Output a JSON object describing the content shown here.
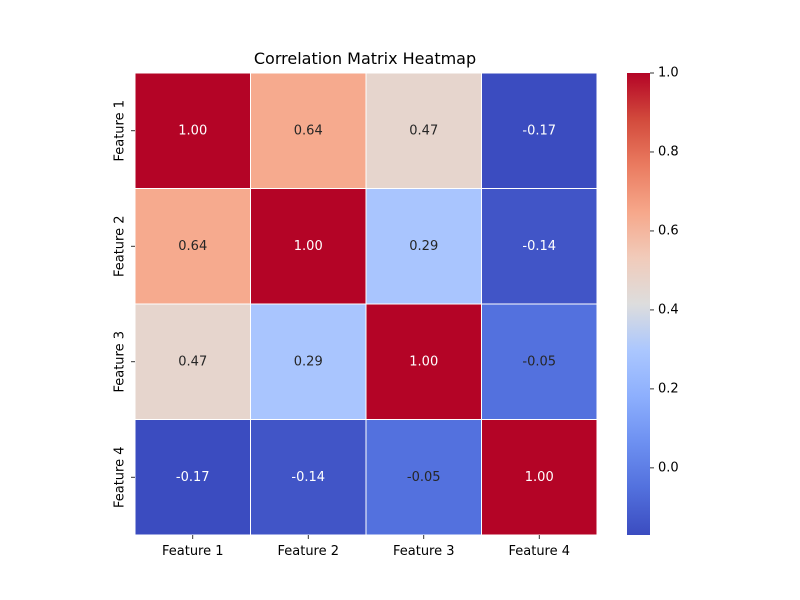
{
  "chart_data": {
    "type": "heatmap",
    "title": "Correlation Matrix Heatmap",
    "x_categories": [
      "Feature 1",
      "Feature 2",
      "Feature 3",
      "Feature 4"
    ],
    "y_categories": [
      "Feature 1",
      "Feature 2",
      "Feature 3",
      "Feature 4"
    ],
    "values": [
      [
        1.0,
        0.64,
        0.47,
        -0.17
      ],
      [
        0.64,
        1.0,
        0.29,
        -0.14
      ],
      [
        0.47,
        0.29,
        1.0,
        -0.05
      ],
      [
        -0.17,
        -0.14,
        -0.05,
        1.0
      ]
    ],
    "value_format": "2 decimals",
    "colormap": "coolwarm",
    "colorbar": {
      "range": [
        -0.17,
        1.0
      ],
      "ticks": [
        0.0,
        0.2,
        0.4,
        0.6,
        0.8,
        1.0
      ],
      "tick_labels": [
        "0.0",
        "0.2",
        "0.4",
        "0.6",
        "0.8",
        "1.0"
      ]
    },
    "cell_border_color": "#ffffff",
    "annotation_light_color": "#ffffff",
    "annotation_dark_color": "#262626"
  }
}
